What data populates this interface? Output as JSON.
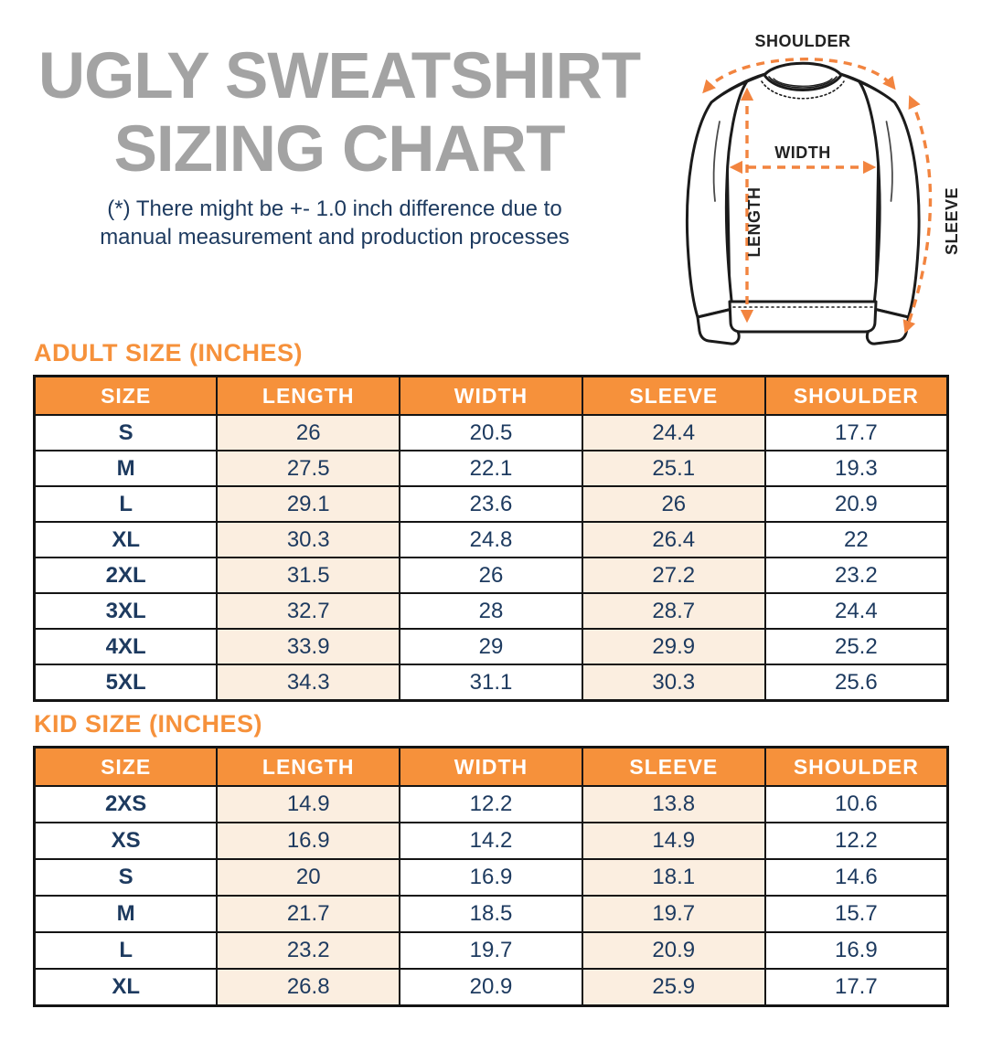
{
  "title": {
    "line1": "UGLY SWEATSHIRT",
    "line2": "SIZING CHART"
  },
  "disclaimer": {
    "line1": "(*) There might be +- 1.0 inch difference due to",
    "line2": "manual measurement and production processes"
  },
  "diagram": {
    "shoulder_label": "SHOULDER",
    "width_label": "WIDTH",
    "length_label": "LENGTH",
    "sleeve_label": "SLEEVE"
  },
  "adult_table": {
    "heading": "ADULT SIZE (INCHES)",
    "columns": [
      "SIZE",
      "LENGTH",
      "WIDTH",
      "SLEEVE",
      "SHOULDER"
    ],
    "rows": [
      [
        "S",
        "26",
        "20.5",
        "24.4",
        "17.7"
      ],
      [
        "M",
        "27.5",
        "22.1",
        "25.1",
        "19.3"
      ],
      [
        "L",
        "29.1",
        "23.6",
        "26",
        "20.9"
      ],
      [
        "XL",
        "30.3",
        "24.8",
        "26.4",
        "22"
      ],
      [
        "2XL",
        "31.5",
        "26",
        "27.2",
        "23.2"
      ],
      [
        "3XL",
        "32.7",
        "28",
        "28.7",
        "24.4"
      ],
      [
        "4XL",
        "33.9",
        "29",
        "29.9",
        "25.2"
      ],
      [
        "5XL",
        "34.3",
        "31.1",
        "30.3",
        "25.6"
      ]
    ]
  },
  "kid_table": {
    "heading": "KID SIZE (INCHES)",
    "columns": [
      "SIZE",
      "LENGTH",
      "WIDTH",
      "SLEEVE",
      "SHOULDER"
    ],
    "rows": [
      [
        "2XS",
        "14.9",
        "12.2",
        "13.8",
        "10.6"
      ],
      [
        "XS",
        "16.9",
        "14.2",
        "14.9",
        "12.2"
      ],
      [
        "S",
        "20",
        "16.9",
        "18.1",
        "14.6"
      ],
      [
        "M",
        "21.7",
        "18.5",
        "19.7",
        "15.7"
      ],
      [
        "L",
        "23.2",
        "19.7",
        "20.9",
        "16.9"
      ],
      [
        "XL",
        "26.8",
        "20.9",
        "25.9",
        "17.7"
      ]
    ]
  },
  "colors": {
    "accent_orange": "#f6913b",
    "arrow_orange": "#f2843f",
    "peach_cell": "#fbeee0",
    "navy_text": "#1d3a5f",
    "title_gray": "#a3a3a3",
    "border_black": "#141414"
  }
}
